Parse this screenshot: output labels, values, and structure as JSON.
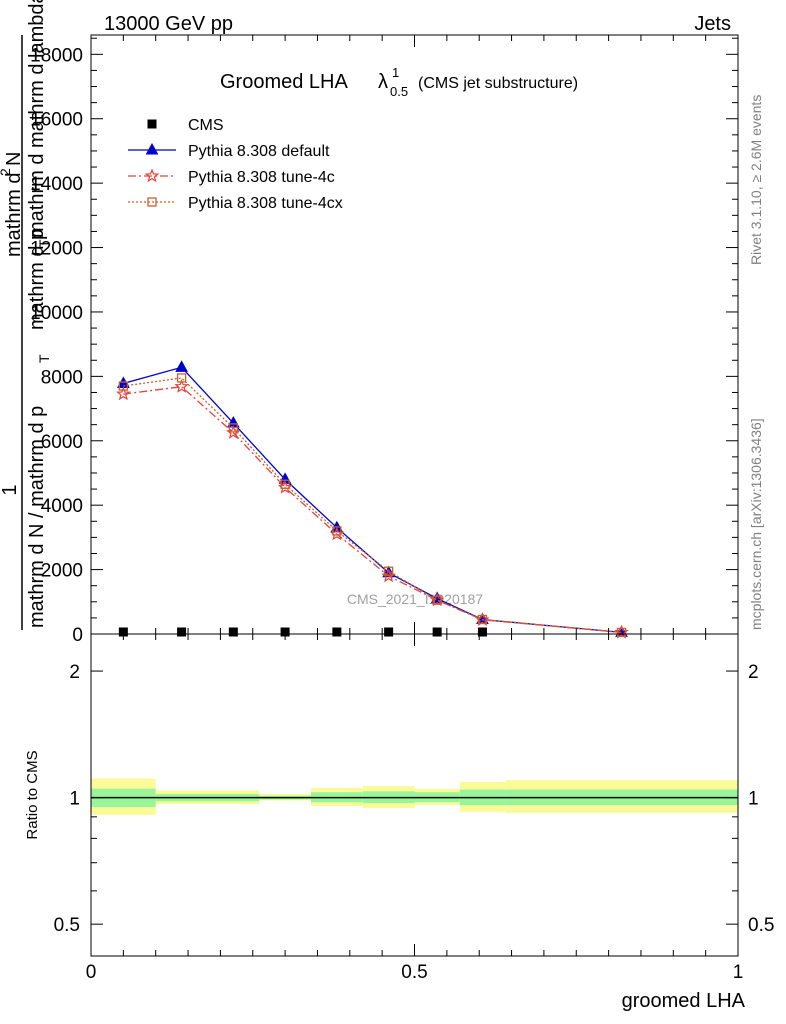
{
  "header": {
    "left": "13000 GeV pp",
    "right": "Jets"
  },
  "side_labels": {
    "rivet": "Rivet 3.1.10, ≥ 2.6M events",
    "mcplots": "mcplots.cern.ch [arXiv:1306.3436]"
  },
  "watermark": "CMS_2021_I1920187",
  "chart_data": [
    {
      "type": "line",
      "title_main": "Groomed LHA",
      "title_lambda": "λ",
      "title_sup": "1",
      "title_sub": "0.5",
      "title_extra": "(CMS jet substructure)",
      "ylabel_lines": [
        "1",
        "mathrm d N / mathrm d p",
        "T",
        "mathrm d",
        "2",
        "N",
        "mathrm d p",
        "T",
        "mathrm d mathrm d lambda"
      ],
      "ylabel_pieces": {
        "one": "1",
        "n1": "mathrm d N / mathrm d p",
        "t1": "T",
        "top": "mathrm d",
        "two": "2",
        "n2": "N",
        "mid": "mathrm d p",
        "t2": "T",
        "lam": "mathrm d mathrm d lambda"
      },
      "xlim": [
        0,
        1
      ],
      "ylim": [
        0,
        18600
      ],
      "yticks": [
        2000,
        4000,
        6000,
        8000,
        10000,
        12000,
        14000,
        16000,
        18000
      ],
      "legend_placement": "top-left",
      "cms": {
        "name": "CMS",
        "x": [
          0.05,
          0.14,
          0.22,
          0.3,
          0.38,
          0.46,
          0.535,
          0.605
        ],
        "values": [
          15,
          15,
          15,
          15,
          15,
          15,
          15,
          15
        ]
      },
      "series": [
        {
          "name": "Pythia 8.308 default",
          "color": "#0000cc",
          "marker": "triangle",
          "dash": "",
          "x": [
            0.05,
            0.14,
            0.22,
            0.3,
            0.38,
            0.46,
            0.535,
            0.605,
            0.82
          ],
          "values": [
            7780,
            8280,
            6550,
            4800,
            3300,
            1900,
            1100,
            450,
            50
          ]
        },
        {
          "name": "Pythia 8.308 tune-4c",
          "color": "#e8413a",
          "marker": "star",
          "dash": "8,3,2,3",
          "x": [
            0.05,
            0.14,
            0.22,
            0.3,
            0.38,
            0.46,
            0.535,
            0.605,
            0.82
          ],
          "values": [
            7450,
            7680,
            6250,
            4550,
            3100,
            1800,
            1050,
            440,
            50
          ]
        },
        {
          "name": "Pythia 8.308 tune-4cx",
          "color": "#c8602c",
          "marker": "square",
          "dash": "2,2",
          "x": [
            0.05,
            0.14,
            0.22,
            0.3,
            0.38,
            0.46,
            0.535,
            0.605,
            0.82
          ],
          "values": [
            7700,
            7950,
            6400,
            4650,
            3200,
            1950,
            1050,
            450,
            50
          ]
        }
      ]
    },
    {
      "type": "band",
      "ylabel": "Ratio to CMS",
      "xlabel": "groomed LHA",
      "xlim": [
        0,
        1
      ],
      "ylim": [
        0.42,
        2.45
      ],
      "log_y": true,
      "yticks": [
        {
          "value": 0.5,
          "label": "0.5"
        },
        {
          "value": 1,
          "label": "1"
        },
        {
          "value": 2,
          "label": "2"
        }
      ],
      "xticks": [
        {
          "value": 0,
          "label": "0"
        },
        {
          "value": 0.5,
          "label": "0.5"
        },
        {
          "value": 1,
          "label": "1"
        }
      ],
      "bins": [
        {
          "x0": 0.0,
          "x1": 0.1,
          "inner": [
            0.95,
            1.05
          ],
          "outer": [
            0.91,
            1.11
          ]
        },
        {
          "x0": 0.1,
          "x1": 0.26,
          "inner": [
            0.98,
            1.02
          ],
          "outer": [
            0.965,
            1.04
          ]
        },
        {
          "x0": 0.26,
          "x1": 0.34,
          "inner": [
            0.99,
            1.01
          ],
          "outer": [
            0.985,
            1.02
          ]
        },
        {
          "x0": 0.34,
          "x1": 0.42,
          "inner": [
            0.975,
            1.03
          ],
          "outer": [
            0.955,
            1.055
          ]
        },
        {
          "x0": 0.42,
          "x1": 0.5,
          "inner": [
            0.97,
            1.035
          ],
          "outer": [
            0.945,
            1.065
          ]
        },
        {
          "x0": 0.5,
          "x1": 0.57,
          "inner": [
            0.975,
            1.03
          ],
          "outer": [
            0.96,
            1.05
          ]
        },
        {
          "x0": 0.57,
          "x1": 0.64,
          "inner": [
            0.96,
            1.045
          ],
          "outer": [
            0.925,
            1.09
          ]
        },
        {
          "x0": 0.64,
          "x1": 1.0,
          "inner": [
            0.96,
            1.045
          ],
          "outer": [
            0.92,
            1.1
          ]
        }
      ],
      "inner_color": "#99f599",
      "outer_color": "#fafa99"
    }
  ]
}
